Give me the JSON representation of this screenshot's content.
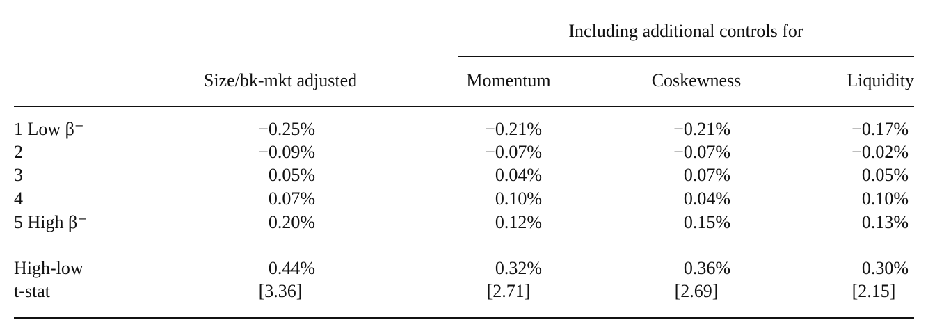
{
  "table": {
    "spanner": "Including additional controls for",
    "columns": [
      "Size/bk-mkt adjusted",
      "Momentum",
      "Coskewness",
      "Liquidity"
    ],
    "rows": [
      {
        "label": "1 Low β⁻",
        "cells": [
          "−0.25%",
          "−0.21%",
          "−0.21%",
          "−0.17%"
        ]
      },
      {
        "label": "2",
        "cells": [
          "−0.09%",
          "−0.07%",
          "−0.07%",
          "−0.02%"
        ]
      },
      {
        "label": "3",
        "cells": [
          "0.05%",
          "0.04%",
          "0.07%",
          "0.05%"
        ]
      },
      {
        "label": "4",
        "cells": [
          "0.07%",
          "0.10%",
          "0.04%",
          "0.10%"
        ]
      },
      {
        "label": "5 High β⁻",
        "cells": [
          "0.20%",
          "0.12%",
          "0.15%",
          "0.13%"
        ]
      },
      {
        "label": "High-low",
        "cells": [
          "0.44%",
          "0.32%",
          "0.36%",
          "0.30%"
        ]
      },
      {
        "label": "t-stat",
        "cells": [
          "[3.36]",
          "[2.71]",
          "[2.69]",
          "[2.15]"
        ]
      }
    ]
  }
}
